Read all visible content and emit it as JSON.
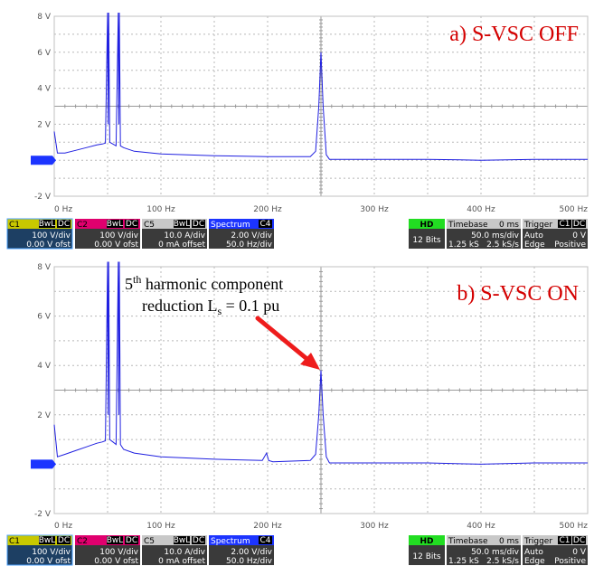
{
  "chart_data": [
    {
      "type": "line",
      "title": "a) S-VSC OFF",
      "xlabel": "",
      "ylabel": "",
      "xlim": [
        0,
        500
      ],
      "ylim": [
        -2,
        8
      ],
      "x_ticks": [
        "0 Hz",
        "100 Hz",
        "200 Hz",
        "300 Hz",
        "400 Hz",
        "500 Hz"
      ],
      "y_ticks": [
        "8 V",
        "6 V",
        "4 V",
        "2 V",
        "0 V",
        "-2 V"
      ],
      "grid": true,
      "series": [
        {
          "color": "#2020e0",
          "x": [
            0,
            3,
            10,
            20,
            30,
            40,
            45,
            48,
            50,
            50.5,
            51,
            52,
            55,
            58,
            60,
            60.5,
            61,
            62,
            65,
            75,
            100,
            150,
            200,
            240,
            245,
            248,
            250,
            252,
            255,
            258,
            260,
            300,
            350,
            400,
            450,
            500
          ],
          "y": [
            1.6,
            0.4,
            0.4,
            0.55,
            0.7,
            0.85,
            0.9,
            0.95,
            8.2,
            2.0,
            8.2,
            1.0,
            0.9,
            0.8,
            8.2,
            2.0,
            8.2,
            0.8,
            0.7,
            0.5,
            0.35,
            0.25,
            0.2,
            0.2,
            0.5,
            3.0,
            6.0,
            3.0,
            0.3,
            0.05,
            0.05,
            0.05,
            0.05,
            0.0,
            0.05,
            0.05
          ]
        }
      ]
    },
    {
      "type": "line",
      "title": "b) S-VSC ON",
      "xlabel": "",
      "ylabel": "",
      "xlim": [
        0,
        500
      ],
      "ylim": [
        -2,
        8
      ],
      "x_ticks": [
        "0 Hz",
        "100 Hz",
        "200 Hz",
        "300 Hz",
        "400 Hz",
        "500 Hz"
      ],
      "y_ticks": [
        "8 V",
        "6 V",
        "4 V",
        "2 V",
        "0 V",
        "-2 V"
      ],
      "grid": true,
      "series": [
        {
          "color": "#2020e0",
          "x": [
            0,
            3,
            10,
            20,
            30,
            40,
            45,
            48,
            50,
            50.5,
            51,
            52,
            55,
            58,
            60,
            60.5,
            61,
            62,
            65,
            75,
            100,
            150,
            195,
            199,
            201,
            205,
            240,
            245,
            248,
            250,
            252,
            255,
            258,
            260,
            300,
            350,
            400,
            450,
            500
          ],
          "y": [
            1.6,
            0.3,
            0.4,
            0.55,
            0.7,
            0.85,
            0.9,
            0.95,
            8.2,
            2.0,
            8.2,
            1.0,
            0.9,
            0.8,
            8.2,
            2.0,
            8.2,
            0.8,
            0.6,
            0.45,
            0.3,
            0.2,
            0.15,
            0.45,
            0.15,
            0.1,
            0.15,
            0.4,
            2.0,
            3.8,
            2.0,
            0.3,
            0.05,
            0.05,
            0.05,
            0.05,
            0.0,
            0.05,
            0.05
          ]
        }
      ]
    }
  ],
  "annotation": {
    "line1_base": "5",
    "line1_sup": "th",
    "line1_rest": " harmonic component",
    "line2_base": "reduction L",
    "line2_sub": "s",
    "line2_rest": " = 0.1 pu"
  },
  "status_bars": [
    {
      "channels": [
        {
          "name": "C1",
          "bwl": "BwL",
          "dc": "DC",
          "vdiv": "100 V/div",
          "ofst": "0.00 V ofst",
          "color": "#c8c800"
        },
        {
          "name": "C2",
          "bwl": "BwL",
          "dc": "DC",
          "vdiv": "100 V/div",
          "ofst": "0.00 V ofst",
          "color": "#e0006e"
        },
        {
          "name": "C5",
          "bwl": "BwL",
          "dc": "DC",
          "vdiv": "10.0 A/div",
          "ofst": "0 mA offset",
          "color": "#c8c8c8"
        },
        {
          "name": "Spectrum",
          "bwl": "",
          "dc": "C4",
          "vdiv": "2.00 V/div",
          "ofst": "50.0 Hz/div",
          "color": "#1c34ff"
        }
      ],
      "hd": {
        "label": "HD",
        "bits": "12 Bits"
      },
      "timebase": {
        "label": "Timebase",
        "offset": "0 ms",
        "div": "50.0 ms/div",
        "samples": "1.25 kS",
        "rate": "2.5 kS/s"
      },
      "trigger": {
        "label": "Trigger",
        "ch": "C1",
        "dc": "DC",
        "mode": "Auto",
        "level": "0 V",
        "type": "Edge",
        "slope": "Positive"
      }
    },
    {
      "channels": [
        {
          "name": "C1",
          "bwl": "BwL",
          "dc": "DC",
          "vdiv": "100 V/div",
          "ofst": "0.00 V ofst",
          "color": "#c8c800"
        },
        {
          "name": "C2",
          "bwl": "BwL",
          "dc": "DC",
          "vdiv": "100 V/div",
          "ofst": "0.00 V ofst",
          "color": "#e0006e"
        },
        {
          "name": "C5",
          "bwl": "BwL",
          "dc": "DC",
          "vdiv": "10.0 A/div",
          "ofst": "0 mA offset",
          "color": "#c8c8c8"
        },
        {
          "name": "Spectrum",
          "bwl": "",
          "dc": "C4",
          "vdiv": "2.00 V/div",
          "ofst": "50.0 Hz/div",
          "color": "#1c34ff"
        }
      ],
      "hd": {
        "label": "HD",
        "bits": "12 Bits"
      },
      "timebase": {
        "label": "Timebase",
        "offset": "0 ms",
        "div": "50.0 ms/div",
        "samples": "1.25 kS",
        "rate": "2.5 kS/s"
      },
      "trigger": {
        "label": "Trigger",
        "ch": "C1",
        "dc": "DC",
        "mode": "Auto",
        "level": "0 V",
        "type": "Edge",
        "slope": "Positive"
      }
    }
  ]
}
